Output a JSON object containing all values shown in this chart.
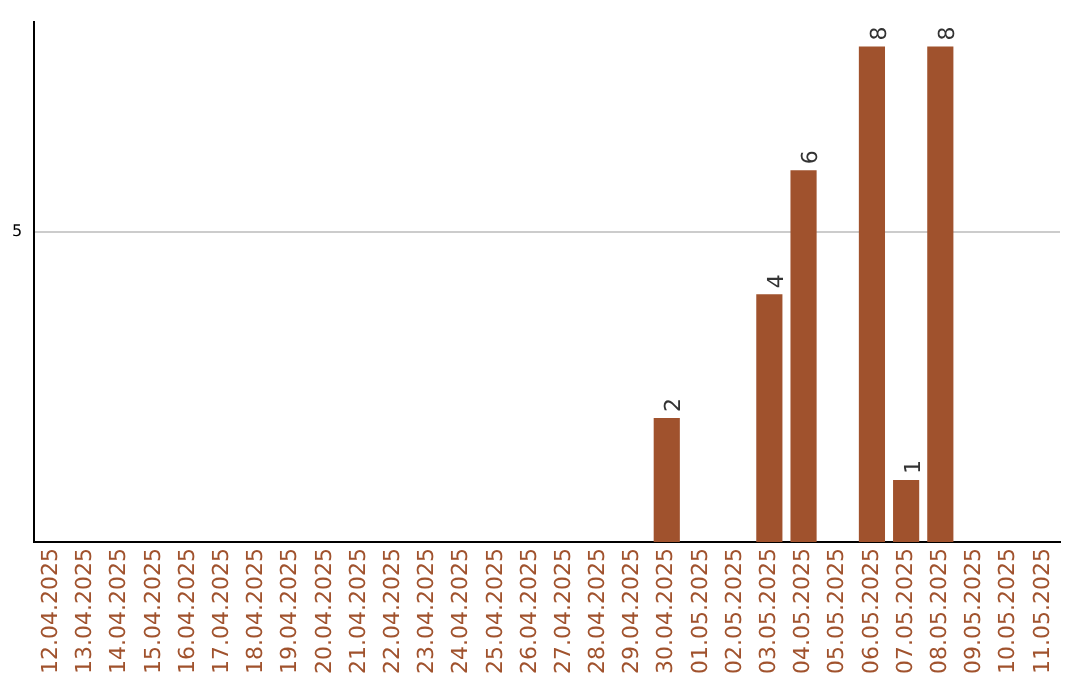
{
  "chart_data": {
    "type": "bar",
    "categories": [
      "12.04.2025",
      "13.04.2025",
      "14.04.2025",
      "15.04.2025",
      "16.04.2025",
      "17.04.2025",
      "18.04.2025",
      "19.04.2025",
      "20.04.2025",
      "21.04.2025",
      "22.04.2025",
      "23.04.2025",
      "24.04.2025",
      "25.04.2025",
      "26.04.2025",
      "27.04.2025",
      "28.04.2025",
      "29.04.2025",
      "30.04.2025",
      "01.05.2025",
      "02.05.2025",
      "03.05.2025",
      "04.05.2025",
      "05.05.2025",
      "06.05.2025",
      "07.05.2025",
      "08.05.2025",
      "09.05.2025",
      "10.05.2025",
      "11.05.2025"
    ],
    "values": [
      null,
      null,
      null,
      null,
      null,
      null,
      null,
      null,
      null,
      null,
      null,
      null,
      null,
      null,
      null,
      null,
      null,
      null,
      2,
      null,
      null,
      4,
      6,
      null,
      8,
      1,
      8,
      null,
      null,
      null
    ],
    "ylim": [
      0,
      8.4
    ],
    "yticks": [
      5
    ],
    "grid": "y",
    "value_labels": [
      null,
      null,
      null,
      null,
      null,
      null,
      null,
      null,
      null,
      null,
      null,
      null,
      null,
      null,
      null,
      null,
      null,
      null,
      "2",
      null,
      null,
      "4",
      "6",
      null,
      "8",
      "1",
      "8",
      null,
      null,
      null
    ],
    "color": "#a0522d",
    "legend": false
  }
}
